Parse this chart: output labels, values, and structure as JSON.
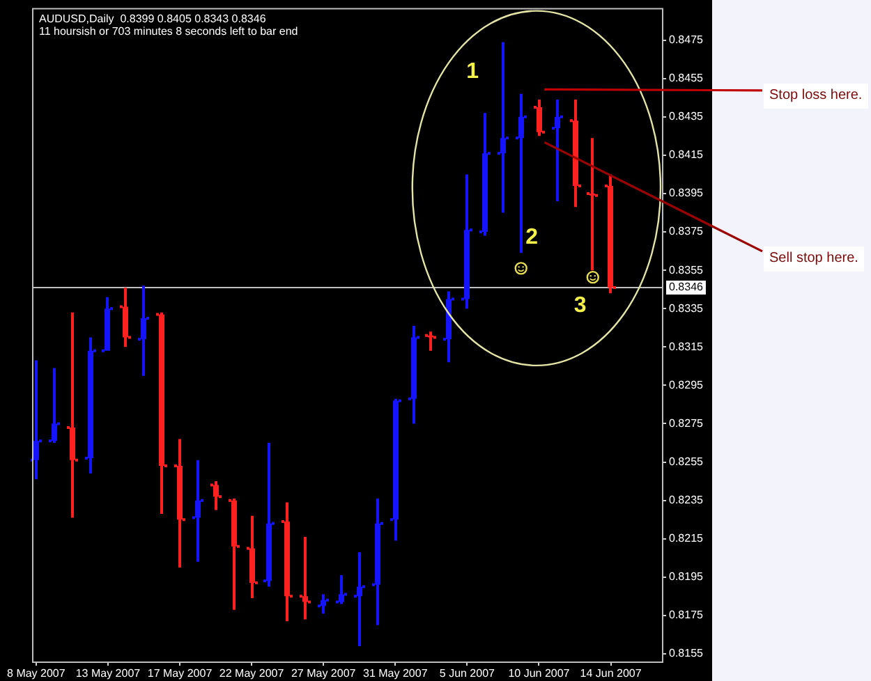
{
  "chart_data": {
    "type": "candlestick",
    "title": "AUDUSD,Daily  0.8399 0.8405 0.8343 0.8346",
    "subtitle": "11 hoursish or 703 minutes 8 seconds left to bar end",
    "categories": [
      "8 May 2007",
      null,
      null,
      null,
      "13 May 2007",
      null,
      null,
      null,
      "17 May 2007",
      null,
      null,
      null,
      "22 May 2007",
      null,
      null,
      null,
      "27 May 2007",
      null,
      null,
      null,
      "31 May 2007",
      null,
      null,
      null,
      "5 Jun 2007",
      null,
      null,
      null,
      "10 Jun 2007",
      null,
      null,
      null,
      "14 Jun 2007"
    ],
    "ohlc": [
      [
        0.8256,
        0.8308,
        0.8246,
        0.8266
      ],
      [
        0.8266,
        0.8304,
        0.8265,
        0.8275
      ],
      [
        0.8273,
        0.8333,
        0.8226,
        0.8256
      ],
      [
        0.8257,
        0.832,
        0.8249,
        0.8313
      ],
      [
        0.8313,
        0.8341,
        0.8313,
        0.8335
      ],
      [
        0.8336,
        0.8346,
        0.8315,
        0.832
      ],
      [
        0.8319,
        0.8347,
        0.83,
        0.833
      ],
      [
        0.8332,
        0.8333,
        0.8228,
        0.8253
      ],
      [
        0.8253,
        0.8267,
        0.82,
        0.8225
      ],
      [
        0.8226,
        0.8256,
        0.8203,
        0.8235
      ],
      [
        0.8243,
        0.8245,
        0.823,
        0.8237
      ],
      [
        0.8235,
        0.8236,
        0.8178,
        0.8211
      ],
      [
        0.821,
        0.8227,
        0.8184,
        0.8192
      ],
      [
        0.8193,
        0.8265,
        0.819,
        0.8223
      ],
      [
        0.8224,
        0.8234,
        0.8172,
        0.8185
      ],
      [
        0.8185,
        0.8216,
        0.8173,
        0.8182
      ],
      [
        0.818,
        0.8186,
        0.8176,
        0.8183
      ],
      [
        0.8182,
        0.8196,
        0.8181,
        0.8186
      ],
      [
        0.8185,
        0.8208,
        0.8159,
        0.819
      ],
      [
        0.8191,
        0.8236,
        0.817,
        0.8223
      ],
      [
        0.8225,
        0.8288,
        0.8214,
        0.8287
      ],
      [
        0.8288,
        0.8326,
        0.8275,
        0.832
      ],
      [
        0.8321,
        0.8323,
        0.8313,
        0.832
      ],
      [
        0.8319,
        0.8344,
        0.8307,
        0.834
      ],
      [
        0.834,
        0.8405,
        0.8335,
        0.8376
      ],
      [
        0.8375,
        0.8437,
        0.8373,
        0.8416
      ],
      [
        0.8416,
        0.8474,
        0.8385,
        0.8424
      ],
      [
        0.8424,
        0.8447,
        0.8364,
        0.8435
      ],
      [
        0.844,
        0.8444,
        0.8425,
        0.8427
      ],
      [
        0.8429,
        0.8444,
        0.8391,
        0.8435
      ],
      [
        0.8433,
        0.8444,
        0.8388,
        0.8399
      ],
      [
        0.8395,
        0.8424,
        0.8355,
        0.8394
      ],
      [
        0.8399,
        0.8405,
        0.8343,
        0.8346
      ]
    ],
    "colors": [
      "#1414ff",
      "#1414ff",
      "#ff2020",
      "#1414ff",
      "#1414ff",
      "#ff2020",
      "#1414ff",
      "#ff2020",
      "#ff2020",
      "#1414ff",
      "#ff2020",
      "#ff2020",
      "#ff2020",
      "#1414ff",
      "#ff2020",
      "#ff2020",
      "#1414ff",
      "#1414ff",
      "#1414ff",
      "#1414ff",
      "#1414ff",
      "#1414ff",
      "#ff2020",
      "#1414ff",
      "#1414ff",
      "#1414ff",
      "#1414ff",
      "#1414ff",
      "#ff2020",
      "#1414ff",
      "#ff2020",
      "#ff2020",
      "#ff2020"
    ],
    "ylim": [
      0.8151,
      0.8491
    ],
    "yticks": [
      0.8155,
      0.8175,
      0.8195,
      0.8215,
      0.8235,
      0.8255,
      0.8275,
      0.8295,
      0.8315,
      0.8335,
      0.8355,
      0.8375,
      0.8395,
      0.8415,
      0.8435,
      0.8455,
      0.8475
    ],
    "ref_lines": [
      {
        "axis": "y",
        "value": 0.8346,
        "label": "0.8346",
        "color": "#c0c0c0"
      }
    ],
    "annotations": [
      "1",
      "2",
      "3",
      "Stop loss here.",
      "Sell stop here."
    ]
  }
}
